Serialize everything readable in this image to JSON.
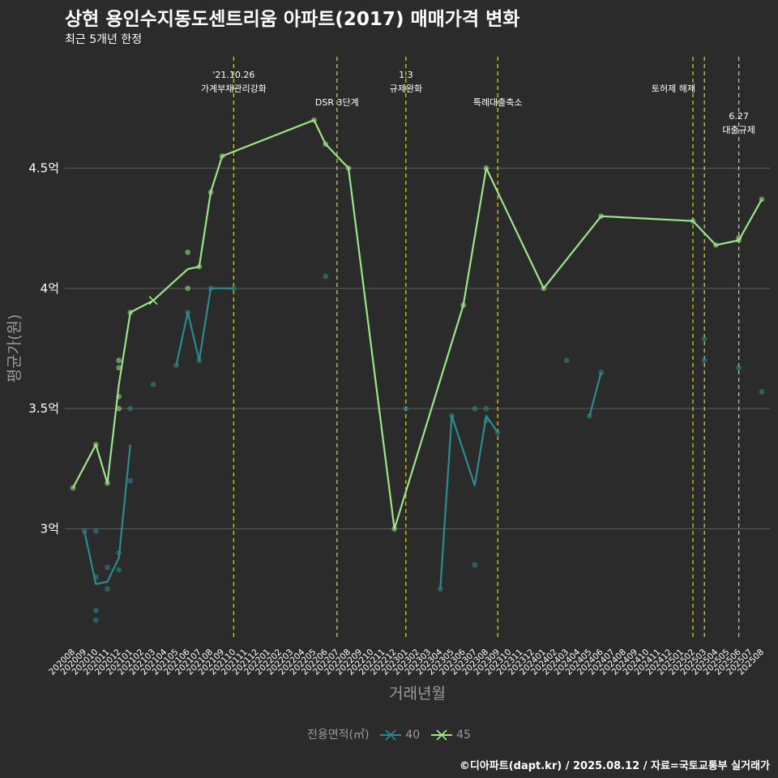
{
  "title": "상현 용인수지동도센트리움 아파트(2017) 매매가격 변화",
  "subtitle": "최근 5개년 한정",
  "caption": "©디아파트(dapt.kr) / 2025.08.12 / 자료=국토교통부 실거래가",
  "colors": {
    "background": "#2b2b2b",
    "grid": "#5c5c5c",
    "s40": "#2a8c8f",
    "s45": "#9de589",
    "vline": "#e8e82c",
    "axis_text": "#aaaaaa"
  },
  "chart_data": {
    "type": "line",
    "xlabel": "거래년월",
    "ylabel": "평균가(원)",
    "x": [
      "202008",
      "202009",
      "202010",
      "202011",
      "202012",
      "202101",
      "202102",
      "202103",
      "202104",
      "202105",
      "202106",
      "202107",
      "202108",
      "202109",
      "202110",
      "202111",
      "202112",
      "202201",
      "202202",
      "202203",
      "202204",
      "202205",
      "202206",
      "202207",
      "202208",
      "202209",
      "202210",
      "202211",
      "202212",
      "202301",
      "202302",
      "202303",
      "202304",
      "202305",
      "202306",
      "202307",
      "202308",
      "202309",
      "202310",
      "202311",
      "202312",
      "202401",
      "202402",
      "202403",
      "202404",
      "202405",
      "202406",
      "202407",
      "202408",
      "202409",
      "202410",
      "202411",
      "202412",
      "202501",
      "202502",
      "202503",
      "202504",
      "202505",
      "202506",
      "202507",
      "202508"
    ],
    "y_ticks": [
      {
        "value": 3.0,
        "label": "3억"
      },
      {
        "value": 3.5,
        "label": "3.5억"
      },
      {
        "value": 4.0,
        "label": "4억"
      },
      {
        "value": 4.5,
        "label": "4.5억"
      }
    ],
    "ylim": [
      2.52,
      4.98
    ],
    "legend_title": "전용면적(㎡)",
    "legend_position": "bottom",
    "series": [
      {
        "name": "40",
        "color": "#2a8c8f",
        "line": [
          {
            "x": "202009",
            "y": 2.99
          },
          {
            "x": "202010",
            "y": 2.77
          },
          {
            "x": "202011",
            "y": 2.78
          },
          {
            "x": "202012",
            "y": 2.88
          },
          {
            "x": "202101",
            "y": 3.35
          },
          null,
          {
            "x": "202105",
            "y": 3.68
          },
          {
            "x": "202106",
            "y": 3.9
          },
          {
            "x": "202107",
            "y": 3.7
          },
          {
            "x": "202108",
            "y": 4.0
          },
          {
            "x": "202110",
            "y": 4.0
          },
          null,
          {
            "x": "202304",
            "y": 2.75
          },
          {
            "x": "202305",
            "y": 3.47
          },
          {
            "x": "202307",
            "y": 3.18
          },
          {
            "x": "202308",
            "y": 3.47
          },
          {
            "x": "202309",
            "y": 3.4
          },
          null,
          {
            "x": "202405",
            "y": 3.47
          },
          {
            "x": "202406",
            "y": 3.65
          }
        ],
        "points": [
          {
            "x": "202009",
            "y": 2.99
          },
          {
            "x": "202010",
            "y": 2.99
          },
          {
            "x": "202010",
            "y": 2.8
          },
          {
            "x": "202010",
            "y": 2.66
          },
          {
            "x": "202010",
            "y": 2.62
          },
          {
            "x": "202011",
            "y": 2.84
          },
          {
            "x": "202011",
            "y": 2.75
          },
          {
            "x": "202012",
            "y": 2.9
          },
          {
            "x": "202012",
            "y": 2.83
          },
          {
            "x": "202101",
            "y": 3.5
          },
          {
            "x": "202101",
            "y": 3.2
          },
          {
            "x": "202103",
            "y": 3.6
          },
          {
            "x": "202105",
            "y": 3.68
          },
          {
            "x": "202106",
            "y": 3.9
          },
          {
            "x": "202107",
            "y": 3.7
          },
          {
            "x": "202108",
            "y": 4.0
          },
          {
            "x": "202110",
            "y": 4.0
          },
          {
            "x": "202206",
            "y": 4.05
          },
          {
            "x": "202301",
            "y": 3.5
          },
          {
            "x": "202304",
            "y": 2.75
          },
          {
            "x": "202305",
            "y": 3.47
          },
          {
            "x": "202307",
            "y": 3.5
          },
          {
            "x": "202307",
            "y": 2.85
          },
          {
            "x": "202308",
            "y": 3.5
          },
          {
            "x": "202308",
            "y": 3.45
          },
          {
            "x": "202309",
            "y": 3.4
          },
          {
            "x": "202403",
            "y": 3.7
          },
          {
            "x": "202405",
            "y": 3.47
          },
          {
            "x": "202406",
            "y": 3.65
          },
          {
            "x": "202503",
            "y": 3.79
          },
          {
            "x": "202503",
            "y": 3.7
          },
          {
            "x": "202506",
            "y": 3.67
          },
          {
            "x": "202508",
            "y": 3.57
          }
        ]
      },
      {
        "name": "45",
        "color": "#9de589",
        "line": [
          {
            "x": "202008",
            "y": 3.17
          },
          {
            "x": "202010",
            "y": 3.35
          },
          {
            "x": "202011",
            "y": 3.19
          },
          {
            "x": "202012",
            "y": 3.6
          },
          {
            "x": "202101",
            "y": 3.9
          },
          {
            "x": "202103",
            "y": 3.95
          },
          {
            "x": "202106",
            "y": 4.08
          },
          {
            "x": "202107",
            "y": 4.09
          },
          {
            "x": "202108",
            "y": 4.4
          },
          {
            "x": "202109",
            "y": 4.55
          },
          {
            "x": "202205",
            "y": 4.7
          },
          {
            "x": "202206",
            "y": 4.6
          },
          {
            "x": "202208",
            "y": 4.5
          },
          {
            "x": "202212",
            "y": 3.0
          },
          {
            "x": "202306",
            "y": 3.93
          },
          {
            "x": "202308",
            "y": 4.5
          },
          {
            "x": "202401",
            "y": 4.0
          },
          {
            "x": "202406",
            "y": 4.3
          },
          {
            "x": "202502",
            "y": 4.28
          },
          {
            "x": "202504",
            "y": 4.18
          },
          {
            "x": "202506",
            "y": 4.2
          },
          {
            "x": "202508",
            "y": 4.37
          }
        ],
        "points": [
          {
            "x": "202008",
            "y": 3.17
          },
          {
            "x": "202010",
            "y": 3.35
          },
          {
            "x": "202011",
            "y": 3.19
          },
          {
            "x": "202012",
            "y": 3.7
          },
          {
            "x": "202012",
            "y": 3.67
          },
          {
            "x": "202012",
            "y": 3.55
          },
          {
            "x": "202012",
            "y": 3.5
          },
          {
            "x": "202101",
            "y": 3.9
          },
          {
            "x": "202106",
            "y": 4.15
          },
          {
            "x": "202106",
            "y": 4.0
          },
          {
            "x": "202107",
            "y": 4.09
          },
          {
            "x": "202108",
            "y": 4.4
          },
          {
            "x": "202109",
            "y": 4.55
          },
          {
            "x": "202205",
            "y": 4.7
          },
          {
            "x": "202206",
            "y": 4.6
          },
          {
            "x": "202208",
            "y": 4.5
          },
          {
            "x": "202212",
            "y": 3.0
          },
          {
            "x": "202306",
            "y": 3.93
          },
          {
            "x": "202308",
            "y": 4.5
          },
          {
            "x": "202401",
            "y": 4.0
          },
          {
            "x": "202406",
            "y": 4.3
          },
          {
            "x": "202502",
            "y": 4.28
          },
          {
            "x": "202504",
            "y": 4.18
          },
          {
            "x": "202506",
            "y": 4.2
          },
          {
            "x": "202506",
            "y": 4.21
          },
          {
            "x": "202508",
            "y": 4.37
          }
        ],
        "cross_marks": [
          {
            "x": "202103",
            "y": 3.95
          }
        ]
      }
    ],
    "annotations": [
      {
        "x": "202110",
        "lines": [
          "'21.10.26",
          "가계부채관리강화"
        ],
        "level": 0
      },
      {
        "x": "202207",
        "lines": [
          "DSR 3단계"
        ],
        "level": 1
      },
      {
        "x": "202301",
        "lines": [
          "1.3",
          "규제완화"
        ],
        "level": 0
      },
      {
        "x": "202309",
        "lines": [
          "특례대출축소"
        ],
        "level": 1
      },
      {
        "x": "202502",
        "lines": [
          "토허제 해제"
        ],
        "level": 0.5,
        "align": "right"
      },
      {
        "x": "202503",
        "lines": [],
        "level": 0
      },
      {
        "x": "202506",
        "lines": [
          "6.27",
          "대출규제"
        ],
        "level": 1.5
      }
    ]
  }
}
